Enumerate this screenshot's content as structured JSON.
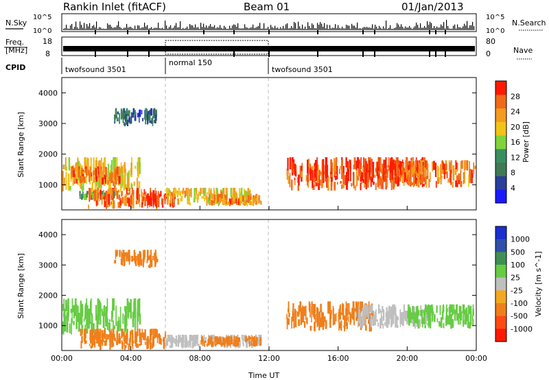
{
  "header": {
    "title": "Rankin Inlet (fitACF)",
    "beam": "Beam 01",
    "date": "01/Jan/2013"
  },
  "strips": {
    "nsky_label": "N.Sky",
    "nsky_scale_top": "10^5",
    "nsky_scale_bottom": "10^0",
    "nsearch_label": "N.Search",
    "freq_label_line1": "Freq.",
    "freq_label_line2": "[MHz]",
    "freq_top": "18",
    "freq_bottom": "8",
    "nave_label": "Nave",
    "nave_top": "80",
    "nave_bottom": "0",
    "cpid_label": "CPID",
    "cpid_segments": [
      {
        "name": "twofsound 3501",
        "start": 0,
        "end": 6
      },
      {
        "name": "normal 150",
        "start": 6,
        "end": 12
      },
      {
        "name": "twofsound 3501",
        "start": 12,
        "end": 24
      }
    ]
  },
  "colors": {
    "power_scale": [
      "#1a1aff",
      "#2a3f9a",
      "#3f7a55",
      "#3a8f5f",
      "#7fd43a",
      "#f2c318",
      "#f49b20",
      "#f06a1a",
      "#ff1a00"
    ],
    "velocity_scale": [
      "#1a2fd0",
      "#2f50a8",
      "#3f8f55",
      "#66cc44",
      "#bfbfbf",
      "#f2a820",
      "#f07f1a",
      "#ff4a14",
      "#ff1a00"
    ]
  },
  "chart_data": [
    {
      "type": "heatmap",
      "panel": "power",
      "xlabel": "",
      "ylabel": "Slant Range [km]",
      "xlim": [
        0,
        24
      ],
      "ylim": [
        180,
        4500
      ],
      "yticks": [
        1000,
        2000,
        3000,
        4000
      ],
      "colorbar": {
        "label": "Power [dB]",
        "range": [
          0,
          32
        ],
        "ticks": [
          "4",
          "8",
          "12",
          "16",
          "20",
          "24",
          "28"
        ]
      },
      "regions": [
        {
          "t": [
            0.0,
            4.5
          ],
          "r": [
            700,
            1900
          ],
          "level": 20
        },
        {
          "t": [
            0.5,
            3.5
          ],
          "r": [
            1000,
            1600
          ],
          "level": 26
        },
        {
          "t": [
            1.0,
            3.0
          ],
          "r": [
            500,
            800
          ],
          "level": 12
        },
        {
          "t": [
            1.5,
            5.5
          ],
          "r": [
            200,
            900
          ],
          "level": 26
        },
        {
          "t": [
            5.0,
            6.5
          ],
          "r": [
            250,
            800
          ],
          "level": 30
        },
        {
          "t": [
            6.0,
            11.0
          ],
          "r": [
            300,
            900
          ],
          "level": 20
        },
        {
          "t": [
            8.5,
            11.5
          ],
          "r": [
            300,
            700
          ],
          "level": 24
        },
        {
          "t": [
            13.0,
            19.5
          ],
          "r": [
            800,
            1900
          ],
          "level": 28
        },
        {
          "t": [
            17.0,
            21.0
          ],
          "r": [
            900,
            1900
          ],
          "level": 30
        },
        {
          "t": [
            19.5,
            23.9
          ],
          "r": [
            900,
            1800
          ],
          "level": 26
        },
        {
          "t": [
            3.0,
            5.5
          ],
          "r": [
            2900,
            3500
          ],
          "level": 8
        }
      ]
    },
    {
      "type": "heatmap",
      "panel": "velocity",
      "xlabel": "Time UT",
      "ylabel": "Slant Range [km]",
      "xlim": [
        0,
        24
      ],
      "ylim": [
        180,
        4500
      ],
      "yticks": [
        1000,
        2000,
        3000,
        4000
      ],
      "xticks": [
        "00:00",
        "04:00",
        "08:00",
        "12:00",
        "16:00",
        "20:00",
        "00:00"
      ],
      "colorbar": {
        "label": "Velocity [m s^-1]",
        "ticks": [
          "1000",
          "500",
          "100",
          "25",
          "-25",
          "-100",
          "-500",
          "-1000"
        ]
      },
      "regions": [
        {
          "t": [
            0.0,
            4.5
          ],
          "r": [
            700,
            1900
          ],
          "level": 60
        },
        {
          "t": [
            1.0,
            6.0
          ],
          "r": [
            200,
            900
          ],
          "level": -200
        },
        {
          "t": [
            6.0,
            11.5
          ],
          "r": [
            250,
            700
          ],
          "level": 0
        },
        {
          "t": [
            8.0,
            11.5
          ],
          "r": [
            300,
            650
          ],
          "level": -250
        },
        {
          "t": [
            13.0,
            18.0
          ],
          "r": [
            800,
            1800
          ],
          "level": -250
        },
        {
          "t": [
            17.0,
            21.5
          ],
          "r": [
            900,
            1700
          ],
          "level": 0
        },
        {
          "t": [
            20.0,
            23.9
          ],
          "r": [
            900,
            1700
          ],
          "level": 60
        },
        {
          "t": [
            3.0,
            5.5
          ],
          "r": [
            2900,
            3500
          ],
          "level": -150
        }
      ]
    }
  ]
}
